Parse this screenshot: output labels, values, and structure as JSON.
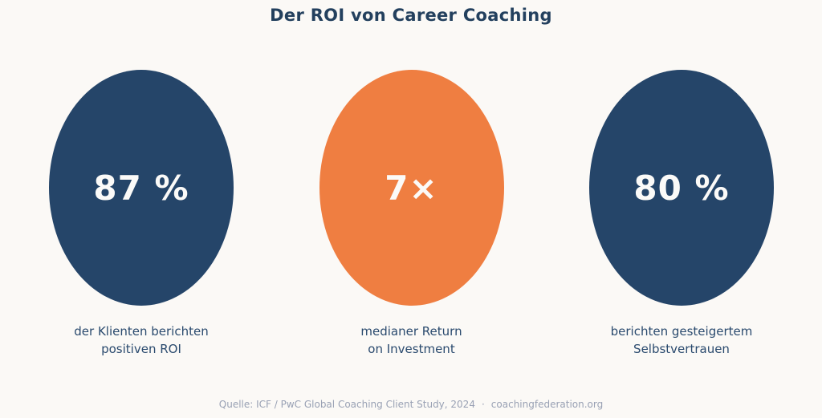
{
  "title": "Der ROI von Career Coaching",
  "colors": {
    "background": "#fbf9f6",
    "navy": "#254569",
    "orange": "#ef7e41",
    "stat_value_text": "#fbfaf8",
    "title_text": "#23405e",
    "caption_text": "#2a4a6e",
    "footer_text": "#99a1b4"
  },
  "stats": [
    {
      "value": "87 %",
      "fill": "#254569",
      "label_line1": "der Klienten berichten",
      "label_line2": "positiven ROI"
    },
    {
      "value": "7×",
      "fill": "#ef7e41",
      "label_line1": "medianer Return",
      "label_line2": "on Investment"
    },
    {
      "value": "80 %",
      "fill": "#254569",
      "label_line1": "berichten gesteigertem",
      "label_line2": "Selbstvertrauen"
    }
  ],
  "footer": {
    "source": "Quelle: ICF / PwC Global Coaching Client Study, 2024",
    "separator": "·",
    "site": "coachingfederation.org"
  },
  "chart_data": {
    "type": "table",
    "title": "Der ROI von Career Coaching",
    "categories": [
      "der Klienten berichten positiven ROI",
      "medianer Return on Investment",
      "berichten gesteigertem Selbstvertrauen"
    ],
    "values": [
      87,
      7,
      80
    ],
    "value_labels": [
      "87 %",
      "7×",
      "80 %"
    ],
    "units": [
      "%",
      "×",
      "%"
    ],
    "series_colors": [
      "#254569",
      "#ef7e41",
      "#254569"
    ],
    "source": "Quelle: ICF / PwC Global Coaching Client Study, 2024 · coachingfederation.org",
    "legend_position": "none",
    "grid": false
  }
}
